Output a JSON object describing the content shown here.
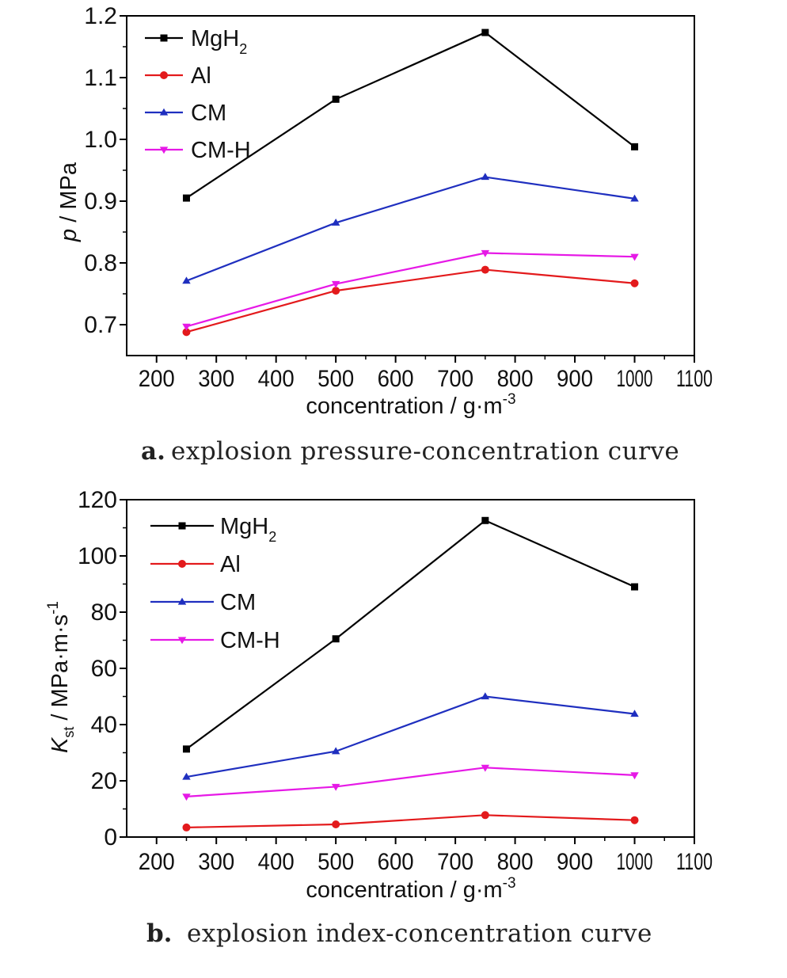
{
  "chart_data": [
    {
      "type": "line",
      "caption_letter": "a.",
      "caption_text": "explosion pressure-concentration curve",
      "xlabel": "concentration / g·m",
      "xlabel_sup": "-3",
      "ylabel_italic": "p",
      "ylabel_rest": " / MPa",
      "xlim": [
        150,
        1100
      ],
      "ylim": [
        0.65,
        1.2
      ],
      "xticks": [
        200,
        300,
        400,
        500,
        600,
        700,
        800,
        900,
        1000,
        1100
      ],
      "yticks": [
        0.7,
        0.8,
        0.9,
        1.0,
        1.1,
        1.2
      ],
      "ytick_labels": [
        "0.7",
        "0.8",
        "0.9",
        "1.0",
        "1.1",
        "1.2"
      ],
      "legend_position": "top-left",
      "x": [
        250,
        500,
        750,
        1000
      ],
      "series": [
        {
          "name": "MgH",
          "name_sub": "2",
          "color": "#000000",
          "marker": "square",
          "values": [
            0.905,
            1.065,
            1.173,
            0.988
          ]
        },
        {
          "name": "Al",
          "name_sub": "",
          "color": "#e31a1c",
          "marker": "circle",
          "values": [
            0.688,
            0.755,
            0.789,
            0.767
          ]
        },
        {
          "name": "CM",
          "name_sub": "",
          "color": "#1f2fbf",
          "marker": "triangle-up",
          "values": [
            0.771,
            0.865,
            0.939,
            0.904
          ]
        },
        {
          "name": "CM-H",
          "name_sub": "",
          "color": "#e619e6",
          "marker": "triangle-down",
          "values": [
            0.697,
            0.766,
            0.816,
            0.81
          ]
        }
      ]
    },
    {
      "type": "line",
      "caption_letter": "b.",
      "caption_text": "explosion index-concentration curve",
      "xlabel": "concentration / g·m",
      "xlabel_sup": "-3",
      "ylabel_italic": "K",
      "ylabel_sub": "st",
      "ylabel_rest": " / MPa·m·s",
      "ylabel_sup": "-1",
      "xlim": [
        150,
        1100
      ],
      "ylim": [
        0,
        120
      ],
      "xticks": [
        200,
        300,
        400,
        500,
        600,
        700,
        800,
        900,
        1000,
        1100
      ],
      "yticks": [
        0,
        20,
        40,
        60,
        80,
        100,
        120
      ],
      "ytick_labels": [
        "0",
        "20",
        "40",
        "60",
        "80",
        "100",
        "120"
      ],
      "legend_position": "top-left",
      "x": [
        250,
        500,
        750,
        1000
      ],
      "series": [
        {
          "name": "MgH",
          "name_sub": "2",
          "color": "#000000",
          "marker": "square",
          "values": [
            31.3,
            70.5,
            112.6,
            89.0
          ]
        },
        {
          "name": "Al",
          "name_sub": "",
          "color": "#e31a1c",
          "marker": "circle",
          "values": [
            3.4,
            4.5,
            7.8,
            6.0
          ]
        },
        {
          "name": "CM",
          "name_sub": "",
          "color": "#1f2fbf",
          "marker": "triangle-up",
          "values": [
            21.4,
            30.5,
            50.0,
            43.8
          ]
        },
        {
          "name": "CM-H",
          "name_sub": "",
          "color": "#e619e6",
          "marker": "triangle-down",
          "values": [
            14.4,
            17.9,
            24.7,
            22.0
          ]
        }
      ]
    }
  ]
}
